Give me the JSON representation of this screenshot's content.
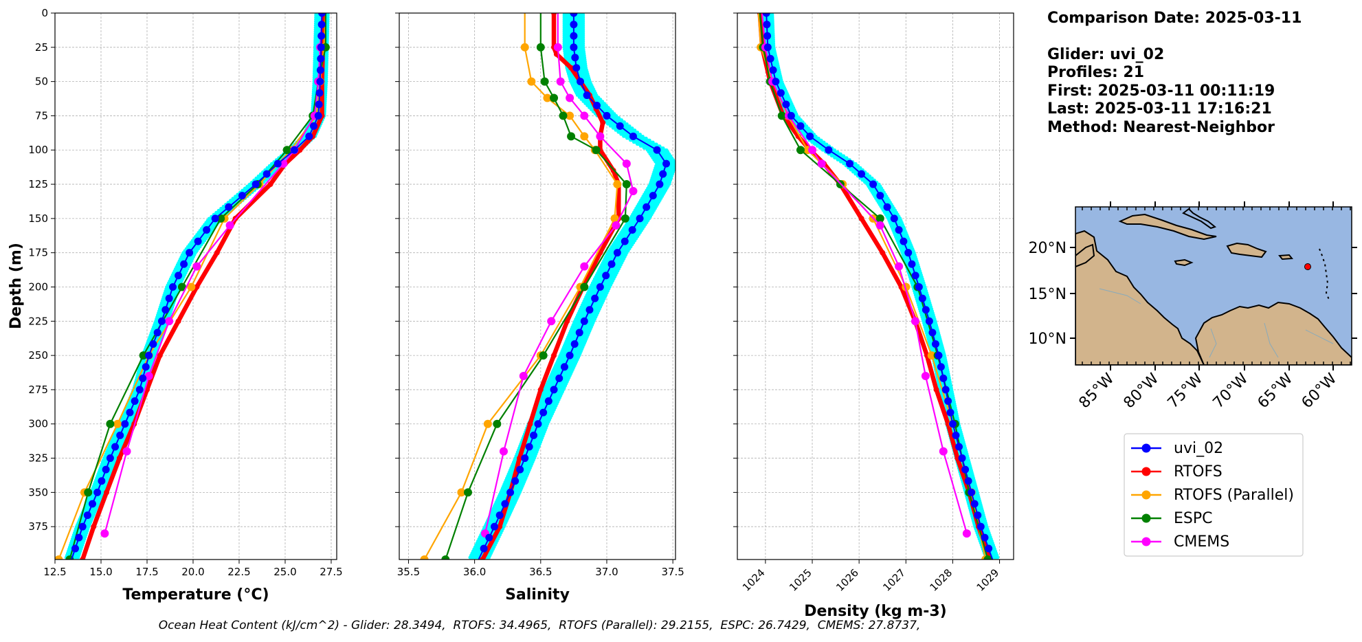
{
  "info": {
    "comparison_date": "Comparison Date: 2025-03-11",
    "glider": "Glider: uvi_02",
    "profiles": "Profiles: 21",
    "first": "First: 2025-03-11 00:11:19",
    "last": "Last: 2025-03-11 17:16:21",
    "method": "Method: Nearest-Neighbor"
  },
  "footer": "Ocean Heat Content (kJ/cm^2) - Glider: 28.3494,  RTOFS: 34.4965,  RTOFS (Parallel): 29.2155,  ESPC: 26.7429,  CMEMS: 27.8737,",
  "colors": {
    "glider": "#0000ff",
    "glider_cloud": "#00ffff",
    "rtofs": "#ff0000",
    "rtofs_parallel": "#ffa500",
    "espc": "#008000",
    "cmems": "#ff00ff",
    "ocean": "#98b7e2",
    "land": "#d2b48c"
  },
  "legend": [
    "uvi_02",
    "RTOFS",
    "RTOFS (Parallel)",
    "ESPC",
    "CMEMS"
  ],
  "map": {
    "lat_labels": [
      "20°N",
      "15°N",
      "10°N"
    ],
    "lon_labels": [
      "85°W",
      "80°W",
      "75°W",
      "70°W",
      "65°W",
      "60°W"
    ],
    "glider_position": {
      "lon": -64.6,
      "lat": 17.9
    }
  },
  "chart_data": [
    {
      "type": "line",
      "xlabel": "Temperature (°C)",
      "ylabel": "Depth (m)",
      "xlim": [
        12.5,
        27.8
      ],
      "ylim": [
        399,
        0
      ],
      "xticks": [
        12.5,
        15.0,
        17.5,
        20.0,
        22.5,
        25.0,
        27.5
      ],
      "yticks": [
        0,
        25,
        50,
        75,
        100,
        125,
        150,
        175,
        200,
        225,
        250,
        275,
        300,
        325,
        350,
        375
      ],
      "grid": true,
      "series": [
        {
          "name": "uvi_02",
          "depth": [
            0,
            50,
            75,
            90,
            100,
            110,
            125,
            150,
            175,
            200,
            225,
            250,
            275,
            300,
            325,
            350,
            375,
            399
          ],
          "values": [
            27.0,
            26.9,
            26.8,
            26.3,
            25.5,
            24.6,
            23.4,
            21.2,
            19.8,
            18.9,
            18.3,
            17.6,
            17.1,
            16.3,
            15.5,
            14.8,
            14.0,
            13.4
          ]
        },
        {
          "name": "RTOFS",
          "depth": [
            0,
            50,
            75,
            90,
            100,
            110,
            125,
            150,
            175,
            200,
            225,
            250,
            275,
            300,
            325,
            350,
            375,
            399
          ],
          "values": [
            27.1,
            27.0,
            27.0,
            26.5,
            25.8,
            25.0,
            24.2,
            22.3,
            21.3,
            20.2,
            19.2,
            18.2,
            17.5,
            16.8,
            16.0,
            15.3,
            14.6,
            14.0
          ]
        },
        {
          "name": "RTOFS (Parallel)",
          "depth": [
            0,
            25,
            50,
            75,
            100,
            125,
            150,
            200,
            250,
            300,
            350,
            399
          ],
          "values": [
            27.2,
            27.1,
            26.9,
            26.7,
            25.3,
            23.6,
            21.7,
            19.9,
            17.6,
            15.9,
            14.1,
            12.7
          ]
        },
        {
          "name": "ESPC",
          "depth": [
            0,
            25,
            50,
            75,
            100,
            125,
            150,
            200,
            250,
            300,
            350,
            399
          ],
          "values": [
            27.2,
            27.2,
            26.8,
            26.5,
            25.1,
            23.5,
            21.5,
            19.4,
            17.3,
            15.5,
            14.3,
            13.3
          ]
        },
        {
          "name": "CMEMS",
          "depth": [
            0,
            25,
            50,
            75,
            100,
            110,
            155,
            185,
            225,
            265,
            320,
            380
          ],
          "values": [
            27.0,
            26.9,
            26.8,
            26.6,
            25.5,
            24.9,
            22.0,
            20.2,
            18.7,
            17.6,
            16.4,
            15.2
          ]
        }
      ]
    },
    {
      "type": "line",
      "xlabel": "Salinity",
      "xlim": [
        35.43,
        37.52
      ],
      "ylim": [
        399,
        0
      ],
      "xticks": [
        35.5,
        36.0,
        36.5,
        37.0,
        37.5
      ],
      "grid": true,
      "series": [
        {
          "name": "uvi_02",
          "depth": [
            0,
            25,
            40,
            50,
            60,
            75,
            90,
            100,
            110,
            125,
            150,
            175,
            200,
            225,
            250,
            275,
            300,
            325,
            350,
            375,
            399
          ],
          "values": [
            36.75,
            36.75,
            36.77,
            36.8,
            36.85,
            37.0,
            37.2,
            37.38,
            37.45,
            37.4,
            37.25,
            37.08,
            36.95,
            36.83,
            36.72,
            36.6,
            36.48,
            36.38,
            36.27,
            36.15,
            36.03
          ]
        },
        {
          "name": "RTOFS",
          "depth": [
            0,
            25,
            30,
            40,
            50,
            60,
            70,
            80,
            90,
            100,
            115,
            125,
            150,
            175,
            200,
            225,
            250,
            275,
            300,
            325,
            350,
            375,
            399
          ],
          "values": [
            36.6,
            36.6,
            36.62,
            36.73,
            36.8,
            36.87,
            36.92,
            36.97,
            36.95,
            36.95,
            37.05,
            37.09,
            37.09,
            36.95,
            36.82,
            36.7,
            36.6,
            36.5,
            36.42,
            36.34,
            36.27,
            36.19,
            36.06
          ]
        },
        {
          "name": "RTOFS (Parallel)",
          "depth": [
            0,
            25,
            50,
            62,
            75,
            90,
            100,
            125,
            150,
            200,
            250,
            300,
            350,
            399
          ],
          "values": [
            36.38,
            36.38,
            36.43,
            36.55,
            36.72,
            36.83,
            36.91,
            37.08,
            37.06,
            36.8,
            36.5,
            36.1,
            35.9,
            35.62
          ]
        },
        {
          "name": "ESPC",
          "depth": [
            0,
            25,
            50,
            62,
            75,
            90,
            100,
            125,
            150,
            200,
            250,
            300,
            350,
            399
          ],
          "values": [
            36.5,
            36.5,
            36.53,
            36.6,
            36.67,
            36.73,
            36.92,
            37.15,
            37.14,
            36.83,
            36.52,
            36.17,
            35.95,
            35.78
          ]
        },
        {
          "name": "CMEMS",
          "depth": [
            0,
            25,
            50,
            62,
            75,
            90,
            110,
            130,
            155,
            185,
            225,
            265,
            320,
            380
          ],
          "values": [
            36.63,
            36.63,
            36.65,
            36.72,
            36.83,
            36.95,
            37.15,
            37.2,
            37.07,
            36.83,
            36.58,
            36.37,
            36.22,
            36.08
          ]
        }
      ]
    },
    {
      "type": "line",
      "xlabel": "Density (kg m-3)",
      "xlim": [
        1023.4,
        1029.3
      ],
      "ylim": [
        399,
        0
      ],
      "xticks": [
        1024,
        1025,
        1026,
        1027,
        1028,
        1029
      ],
      "grid": true,
      "series": [
        {
          "name": "uvi_02",
          "depth": [
            0,
            25,
            50,
            75,
            90,
            100,
            110,
            125,
            150,
            175,
            200,
            225,
            250,
            275,
            300,
            325,
            350,
            375,
            399
          ],
          "values": [
            1024.02,
            1024.05,
            1024.22,
            1024.55,
            1024.95,
            1025.35,
            1025.8,
            1026.3,
            1026.75,
            1027.05,
            1027.28,
            1027.5,
            1027.7,
            1027.85,
            1028.0,
            1028.2,
            1028.4,
            1028.6,
            1028.85
          ]
        },
        {
          "name": "RTOFS",
          "depth": [
            0,
            25,
            50,
            75,
            90,
            100,
            110,
            125,
            150,
            175,
            200,
            225,
            250,
            275,
            300,
            325,
            350,
            375,
            399
          ],
          "values": [
            1023.88,
            1023.93,
            1024.1,
            1024.38,
            1024.7,
            1024.95,
            1025.25,
            1025.6,
            1026.05,
            1026.5,
            1026.9,
            1027.2,
            1027.45,
            1027.65,
            1027.9,
            1028.1,
            1028.35,
            1028.55,
            1028.8
          ]
        },
        {
          "name": "RTOFS (Parallel)",
          "depth": [
            0,
            25,
            50,
            75,
            100,
            125,
            150,
            200,
            250,
            300,
            350,
            399
          ],
          "values": [
            1023.85,
            1023.9,
            1024.15,
            1024.48,
            1024.9,
            1025.65,
            1026.3,
            1027.0,
            1027.55,
            1028.0,
            1028.4,
            1028.7
          ]
        },
        {
          "name": "ESPC",
          "depth": [
            0,
            25,
            50,
            75,
            100,
            125,
            150,
            200,
            250,
            300,
            350,
            399
          ],
          "values": [
            1023.88,
            1023.95,
            1024.1,
            1024.35,
            1024.75,
            1025.6,
            1026.45,
            1027.25,
            1027.68,
            1028.05,
            1028.35,
            1028.75
          ]
        },
        {
          "name": "CMEMS",
          "depth": [
            0,
            25,
            50,
            75,
            100,
            110,
            155,
            185,
            225,
            265,
            320,
            380
          ],
          "values": [
            1023.93,
            1024.0,
            1024.15,
            1024.5,
            1025.0,
            1025.2,
            1026.45,
            1026.85,
            1027.2,
            1027.42,
            1027.8,
            1028.3
          ]
        }
      ]
    }
  ]
}
